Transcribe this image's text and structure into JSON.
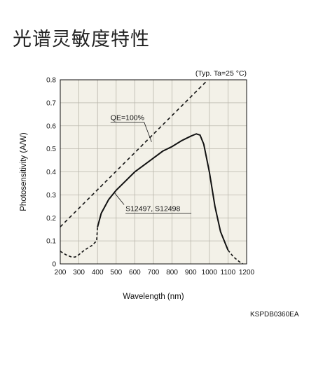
{
  "page": {
    "title": "光谱灵敏度特性"
  },
  "chart_data": {
    "type": "line",
    "condition_note": "(Typ. Ta=25 °C)",
    "xlabel": "Wavelength (nm)",
    "ylabel": "Photosensitivity (A/W)",
    "xlim": [
      200,
      1200
    ],
    "ylim": [
      0,
      0.8
    ],
    "x_ticks": [
      200,
      300,
      400,
      500,
      600,
      700,
      800,
      900,
      1000,
      1100,
      1200
    ],
    "y_ticks": [
      0,
      0.1,
      0.2,
      0.3,
      0.4,
      0.5,
      0.6,
      0.7,
      0.8
    ],
    "grid": true,
    "series": [
      {
        "name": "QE=100%",
        "style": "dashed",
        "x": [
          200,
          980
        ],
        "y": [
          0.161,
          0.79
        ]
      },
      {
        "name": "S12497, S12498",
        "style": "mixed",
        "x": [
          200,
          230,
          260,
          280,
          300,
          330,
          370,
          395,
          400,
          420,
          460,
          500,
          550,
          600,
          650,
          700,
          750,
          800,
          850,
          900,
          930,
          950,
          970,
          1000,
          1030,
          1060,
          1090,
          1100,
          1130,
          1160,
          1180
        ],
        "y": [
          0.055,
          0.04,
          0.03,
          0.03,
          0.04,
          0.06,
          0.08,
          0.1,
          0.16,
          0.22,
          0.28,
          0.32,
          0.36,
          0.4,
          0.43,
          0.46,
          0.49,
          0.51,
          0.535,
          0.555,
          0.565,
          0.56,
          0.52,
          0.4,
          0.25,
          0.14,
          0.08,
          0.06,
          0.03,
          0.01,
          0.0
        ],
        "solid_range": [
          400,
          1100
        ]
      }
    ]
  },
  "footer": {
    "code": "KSPDB0360EA"
  }
}
